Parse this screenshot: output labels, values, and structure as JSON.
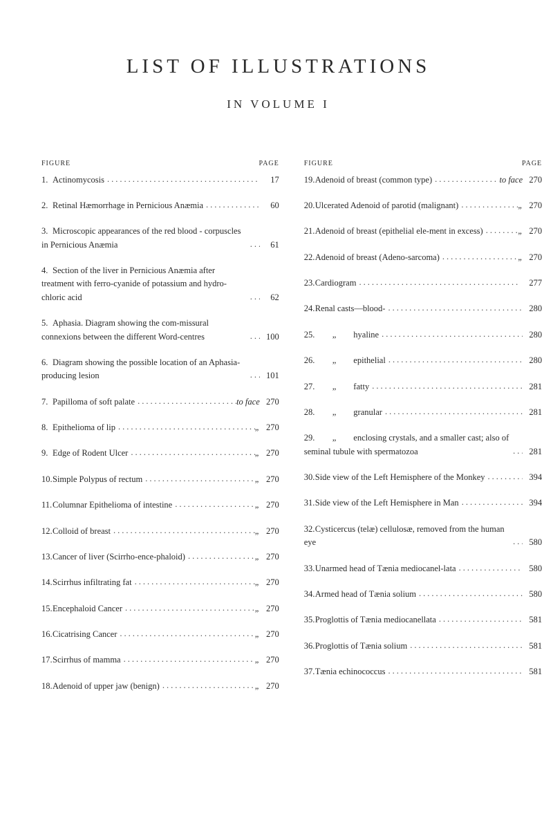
{
  "title": "LIST OF ILLUSTRATIONS",
  "subtitle": "IN VOLUME I",
  "header_left": "FIGURE",
  "header_right": "PAGE",
  "to_face": "to face",
  "ditto": "„",
  "left_entries": [
    {
      "n": "1.",
      "t": "Actinomycosis",
      "p": "17"
    },
    {
      "n": "2.",
      "t": "Retinal Hæmorrhage in Pernicious Anæmia",
      "p": "60"
    },
    {
      "n": "3.",
      "t": "Microscopic appearances of the red blood - corpuscles in Pernicious Anæmia",
      "p": "61"
    },
    {
      "n": "4.",
      "t": "Section of the liver in Pernicious Anæmia after treatment with ferro-cyanide of potassium and hydro-chloric acid",
      "p": "62"
    },
    {
      "n": "5.",
      "t": "Aphasia. Diagram showing the com-missural connexions between the different Word-centres",
      "p": "100"
    },
    {
      "n": "6.",
      "t": "Diagram showing the possible location of an Aphasia-producing lesion",
      "p": "101"
    },
    {
      "n": "7.",
      "t": "Papilloma of soft palate",
      "tag": "to face",
      "p": "270"
    },
    {
      "n": "8.",
      "t": "Epithelioma of lip",
      "tag": "„",
      "p": "270"
    },
    {
      "n": "9.",
      "t": "Edge of Rodent Ulcer",
      "tag": "„",
      "p": "270"
    },
    {
      "n": "10.",
      "t": "Simple Polypus of rectum",
      "tag": "„",
      "p": "270"
    },
    {
      "n": "11.",
      "t": "Columnar Epithelioma of intestine",
      "tag": "„",
      "p": "270"
    },
    {
      "n": "12.",
      "t": "Colloid of breast",
      "tag": "„",
      "p": "270"
    },
    {
      "n": "13.",
      "t": "Cancer of liver (Scirrho-ence-phaloid)",
      "tag": "„",
      "p": "270"
    },
    {
      "n": "14.",
      "t": "Scirrhus infiltrating fat",
      "tag": "„",
      "p": "270"
    },
    {
      "n": "15.",
      "t": "Encephaloid Cancer",
      "tag": "„",
      "p": "270"
    },
    {
      "n": "16.",
      "t": "Cicatrising Cancer",
      "tag": "„",
      "p": "270"
    },
    {
      "n": "17.",
      "t": "Scirrhus of mamma",
      "tag": "„",
      "p": "270"
    },
    {
      "n": "18.",
      "t": "Adenoid of upper jaw (benign)",
      "tag": "„",
      "p": "270"
    }
  ],
  "right_entries": [
    {
      "n": "19.",
      "t": "Adenoid of breast (common type)",
      "tag": "to face",
      "p": "270"
    },
    {
      "n": "20.",
      "t": "Ulcerated Adenoid of parotid (malignant)",
      "tag": "„",
      "p": "270"
    },
    {
      "n": "21.",
      "t": "Adenoid of breast (epithelial ele-ment in excess)",
      "tag": "„",
      "p": "270"
    },
    {
      "n": "22.",
      "t": "Adenoid of breast (Adeno-sarcoma)",
      "tag": "„",
      "p": "270"
    },
    {
      "n": "23.",
      "t": "Cardiogram",
      "p": "277"
    },
    {
      "n": "24.",
      "t": "Renal casts—blood-",
      "p": "280"
    },
    {
      "n": "25.",
      "t": "        „        hyaline",
      "p": "280",
      "indent": true
    },
    {
      "n": "26.",
      "t": "        „        epithelial",
      "p": "280",
      "indent": true
    },
    {
      "n": "27.",
      "t": "        „        fatty",
      "p": "281",
      "indent": true
    },
    {
      "n": "28.",
      "t": "        „        granular",
      "p": "281",
      "indent": true
    },
    {
      "n": "29.",
      "t": "        „        enclosing crystals, and a smaller cast; also of seminal tubule with spermatozoa",
      "p": "281",
      "indent": true
    },
    {
      "n": "30.",
      "t": "Side view of the Left Hemisphere of the Monkey",
      "p": "394"
    },
    {
      "n": "31.",
      "t": "Side view of the Left Hemisphere in Man",
      "p": "394"
    },
    {
      "n": "32.",
      "t": "Cysticercus (telæ) cellulosæ, removed from the human eye",
      "p": "580"
    },
    {
      "n": "33.",
      "t": "Unarmed head of Tænia mediocanel-lata",
      "p": "580"
    },
    {
      "n": "34.",
      "t": "Armed head of Tænia solium",
      "p": "580"
    },
    {
      "n": "35.",
      "t": "Proglottis of Tænia mediocanellata",
      "p": "581"
    },
    {
      "n": "36.",
      "t": "Proglottis of Tænia solium",
      "p": "581"
    },
    {
      "n": "37.",
      "t": "Tænia echinococcus",
      "p": "581"
    }
  ]
}
